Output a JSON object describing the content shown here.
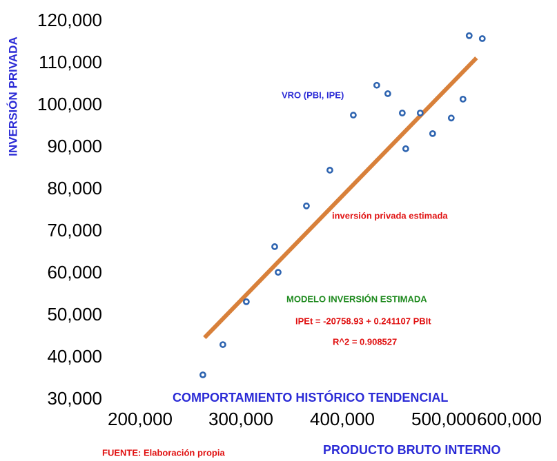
{
  "chart_data": {
    "type": "scatter",
    "x_label": "PRODUCTO BRUTO INTERNO",
    "y_label": "INVERSIÓN PRIVADA",
    "series": [
      {
        "name": "VRO (PBI, IPE)",
        "color": "#2e64b0",
        "x": [
          270000,
          290300,
          314100,
          342900,
          346400,
          375100,
          398900,
          422700,
          446500,
          457700,
          472400,
          475900,
          490600,
          503200,
          522100,
          534000,
          540300,
          553600
        ],
        "values": [
          35900,
          43100,
          53300,
          66400,
          60300,
          76100,
          84600,
          97700,
          104800,
          102800,
          98200,
          89700,
          98200,
          93300,
          97000,
          101500,
          116600,
          115900
        ]
      },
      {
        "name": "inversión privada estimada",
        "color": "#d8803a",
        "line": true,
        "x": [
          271700,
          547700
        ],
        "values": [
          44750,
          111300
        ]
      }
    ],
    "series_label_colors": [
      "#2b2bd6",
      "#e01010"
    ],
    "annotations": [
      {
        "text": "MODELO INVERSIÓN ESTIMADA",
        "color": "#1e8a1e"
      },
      {
        "text": "IPEt  =  -20758.93 + 0.241107 PBIt",
        "color": "#e01010"
      },
      {
        "text": "R^2  =  0.908527",
        "color": "#e01010"
      },
      {
        "text": "COMPORTAMIENTO HISTÓRICO TENDENCIAL",
        "color": "#2b2bd6"
      },
      {
        "text": "FUENTE: Elaboración propia",
        "color": "#e01010"
      }
    ],
    "xlim": [
      200000,
      600000
    ],
    "xticks": [
      {
        "value": 200000,
        "label": "200,000"
      },
      {
        "value": 300000,
        "label": "300,000"
      },
      {
        "value": 400000,
        "label": "400,000"
      },
      {
        "value": 500000,
        "label": "500,000"
      },
      {
        "value": 600000,
        "label": "600,000"
      }
    ],
    "ylim": [
      30000,
      120000
    ],
    "yticks": [
      {
        "value": 30000,
        "label": "30,000"
      },
      {
        "value": 40000,
        "label": "40,000"
      },
      {
        "value": 50000,
        "label": "50,000"
      },
      {
        "value": 60000,
        "label": "60,000"
      },
      {
        "value": 70000,
        "label": "70,000"
      },
      {
        "value": 80000,
        "label": "80,000"
      },
      {
        "value": 90000,
        "label": "90,000"
      },
      {
        "value": 100000,
        "label": "100,000"
      },
      {
        "value": 110000,
        "label": "110,000"
      },
      {
        "value": 120000,
        "label": "120,000"
      }
    ],
    "grid": false
  }
}
